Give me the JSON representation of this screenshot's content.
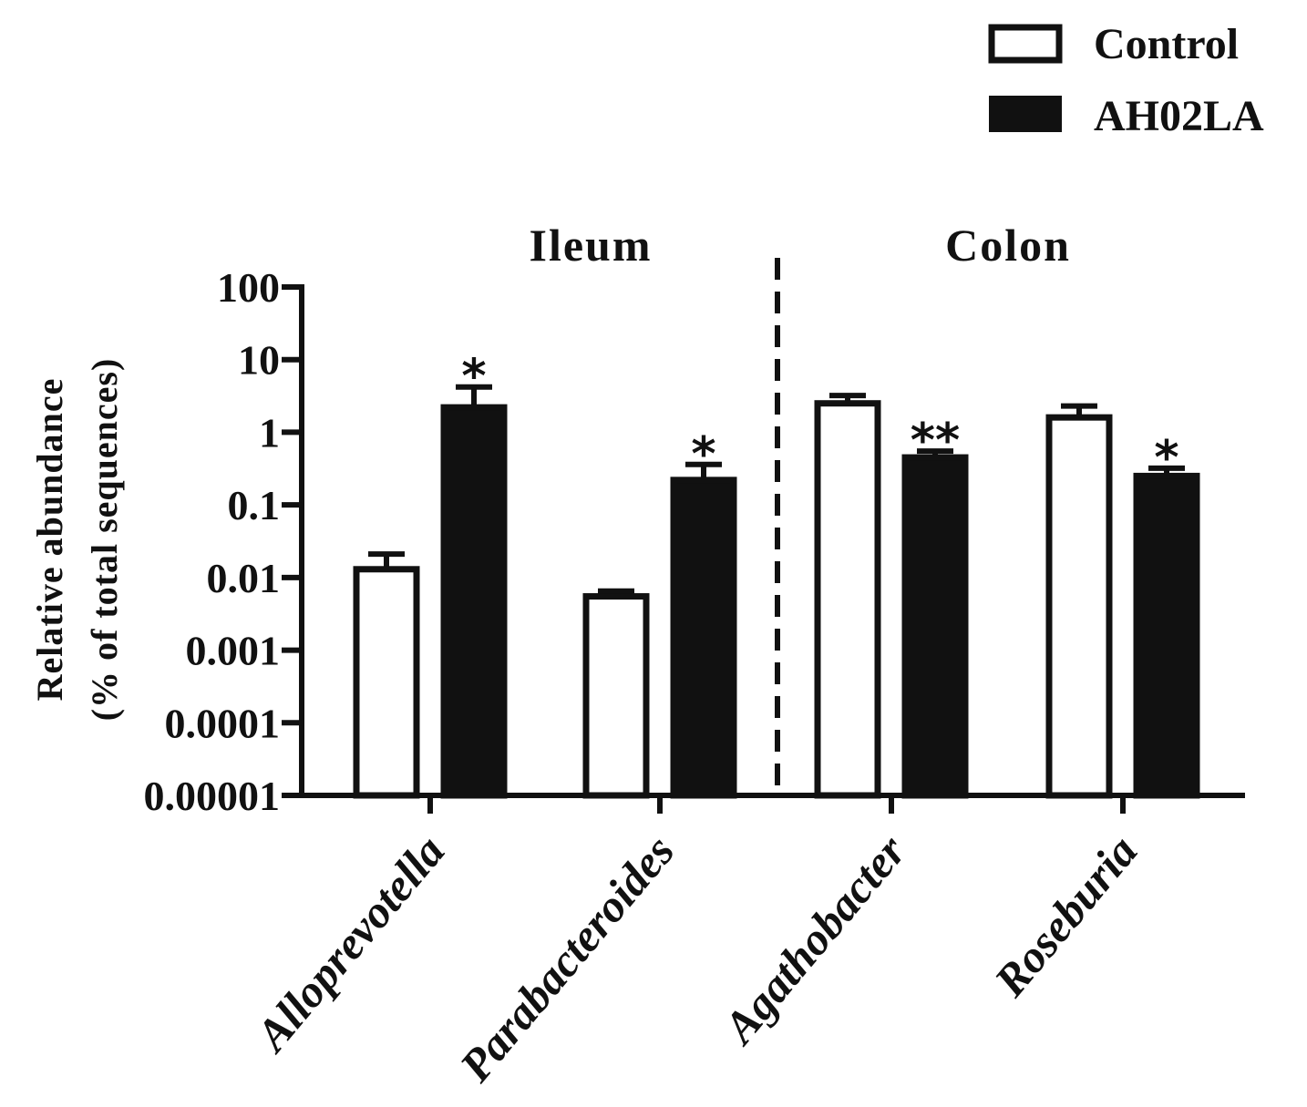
{
  "chart_data": {
    "type": "bar",
    "yscale": "log",
    "ylim": [
      1e-05,
      100
    ],
    "yticks": [
      "100",
      "10",
      "1",
      "0.1",
      "0.01",
      "0.001",
      "0.0001",
      "0.00001"
    ],
    "ylabel_line1": "Relative abundance",
    "ylabel_line2": "(% of total sequences)",
    "categories": [
      "Alloprevotella",
      "Parabacteroides",
      "Agathobacter",
      "Roseburia"
    ],
    "regions": [
      {
        "label": "Ileum",
        "categories": [
          "Alloprevotella",
          "Parabacteroides"
        ]
      },
      {
        "label": "Colon",
        "categories": [
          "Agathobacter",
          "Roseburia"
        ]
      }
    ],
    "series": [
      {
        "name": "Control",
        "fill": "#ffffff",
        "values": [
          0.013,
          0.0055,
          2.5,
          1.6
        ],
        "errors_upper": [
          0.021,
          0.0065,
          3.2,
          2.3
        ]
      },
      {
        "name": "AH02LA",
        "fill": "#111111",
        "values": [
          2.2,
          0.22,
          0.45,
          0.25
        ],
        "errors_upper": [
          4.2,
          0.36,
          0.55,
          0.32
        ]
      }
    ],
    "significance": [
      "*",
      "*",
      "**",
      "*"
    ],
    "legend_position": "top-right"
  }
}
